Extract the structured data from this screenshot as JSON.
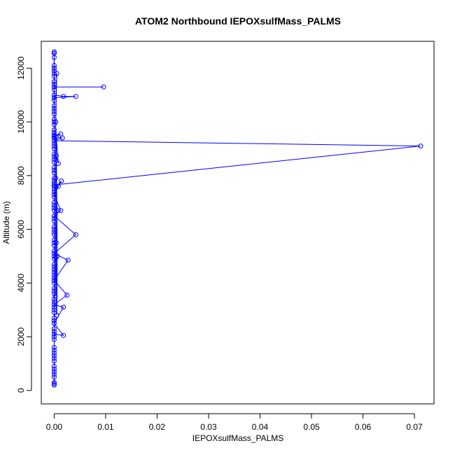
{
  "chart_data": {
    "type": "line",
    "title": "ATOM2 Northbound IEPOXsulfMass_PALMS",
    "xlabel": "IEPOXsulfMass_PALMS",
    "ylabel": "Altitude (m)",
    "xlim": [
      -0.0025,
      0.0738
    ],
    "ylim": [
      -500,
      13000
    ],
    "xticks": [
      0.0,
      0.01,
      0.02,
      0.03,
      0.04,
      0.05,
      0.06,
      0.07
    ],
    "xtick_labels": [
      "0.00",
      "0.01",
      "0.02",
      "0.03",
      "0.04",
      "0.05",
      "0.06",
      "0.07"
    ],
    "yticks": [
      0,
      2000,
      4000,
      6000,
      8000,
      10000,
      12000
    ],
    "ytick_labels": [
      "0",
      "2000",
      "4000",
      "6000",
      "8000",
      "10000",
      "12000"
    ],
    "grid": false,
    "legend": "none",
    "series_color": "#0000ff",
    "marker": "open-circle",
    "series": [
      {
        "x": [
          0.0,
          0.0,
          0.0,
          0.0,
          0.0,
          0.0,
          0.0,
          0.0,
          0.0,
          0.0,
          0.0,
          0.0,
          0.0,
          0.0,
          0.0,
          0.0,
          0.0,
          0.0,
          0.0,
          0.0,
          0.0,
          0.0,
          0.0,
          0.0,
          0.0,
          0.0,
          0.0,
          0.0,
          0.0,
          0.0,
          0.0,
          0.0,
          0.0,
          0.0,
          0.0,
          0.0,
          0.0,
          0.0,
          0.0,
          0.0,
          0.0,
          0.0,
          0.0,
          0.0,
          0.0,
          0.0,
          0.0,
          0.0,
          0.0,
          0.0,
          0.0,
          0.0,
          0.0,
          0.0,
          0.0,
          0.0,
          0.0,
          0.0,
          0.0,
          0.0,
          0.0,
          0.0,
          0.0,
          0.0,
          0.0,
          0.0,
          0.0,
          0.0,
          0.0,
          0.0,
          0.0,
          0.0,
          0.0,
          0.0,
          0.0,
          0.0,
          0.0,
          0.0,
          0.0,
          0.0,
          0.0,
          0.0,
          0.0,
          0.0,
          0.0,
          0.0,
          0.0,
          0.0,
          0.0,
          0.0,
          0.0,
          0.0,
          0.0,
          0.0,
          0.0,
          0.0,
          0.0,
          0.0,
          0.0,
          0.0
        ],
        "y": [
          200,
          500,
          800,
          1200,
          1500,
          1900,
          2300,
          2700,
          3000,
          3300,
          3700,
          4000,
          4300,
          4600,
          4900,
          5200,
          5500,
          5800,
          6100,
          6400,
          6700,
          7000,
          7300,
          7600,
          7900,
          8200,
          8500,
          8800,
          9100,
          9400,
          9700,
          10000,
          10300,
          10600,
          10900,
          11200,
          11500,
          11800,
          12100,
          12600,
          300,
          700,
          1100,
          1600,
          2100,
          2500,
          2900,
          3400,
          3800,
          4200,
          4700,
          5100,
          5600,
          6000,
          6500,
          6900,
          7400,
          7800,
          8300,
          8700,
          9200,
          9600,
          10100,
          10500,
          11000,
          11400,
          11900,
          12400,
          250,
          900,
          1400,
          2000,
          2600,
          3200,
          3600,
          4100,
          4500,
          5000,
          5400,
          5900,
          6300,
          6800,
          7200,
          7700,
          8100,
          8600,
          9000,
          9500,
          9900,
          10400,
          10800,
          11300,
          11700,
          12000,
          12550,
          600,
          1300,
          2200,
          3100,
          4400
        ]
      },
      {
        "x": [
          0.0,
          0.0018,
          0.0,
          0.0018,
          0.0,
          0.0025,
          0.0,
          0.0027,
          0.0,
          0.0042,
          0.0,
          0.0013,
          0.0,
          0.0014,
          0.0,
          0.0008,
          0.0,
          0.0712,
          0.0,
          0.0016,
          0.0,
          0.0013,
          0.0,
          0.0,
          0.0018,
          0.0042,
          0.0,
          0.0,
          0.0096,
          0.0,
          0.0,
          0.0,
          0.0,
          0.0
        ],
        "y": [
          2100,
          2050,
          2500,
          3100,
          3200,
          3550,
          4100,
          4850,
          5100,
          5800,
          6500,
          6700,
          7300,
          7800,
          7500,
          7600,
          7650,
          9100,
          9300,
          9400,
          9450,
          9550,
          9500,
          11000,
          10950,
          10950,
          10900,
          11300,
          11300,
          11300,
          11500,
          12000,
          12600,
          12600
        ]
      },
      {
        "x": [
          0.0003,
          0.0004,
          0.0008,
          0.0004,
          0.0006,
          0.0005,
          0.0003,
          0.0006,
          0.0004,
          0.0002,
          0.0003,
          0.0005
        ],
        "y": [
          4950,
          8750,
          8450,
          9450,
          5000,
          2800,
          7900,
          6700,
          5500,
          3500,
          10000,
          11800
        ]
      }
    ]
  }
}
